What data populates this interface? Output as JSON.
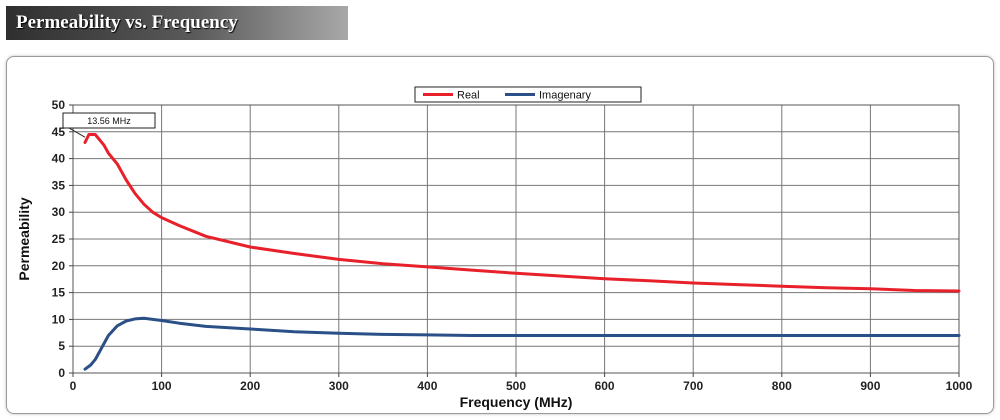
{
  "header": {
    "title": "Permeability vs. Frequency"
  },
  "chart_data": {
    "type": "line",
    "title": "",
    "xlabel": "Frequency (MHz)",
    "ylabel": "Permeability",
    "xlim": [
      0,
      1000
    ],
    "ylim": [
      0,
      50
    ],
    "x_ticks": [
      "0",
      "100",
      "200",
      "300",
      "400",
      "500",
      "600",
      "700",
      "800",
      "900",
      "1000"
    ],
    "y_ticks": [
      "0",
      "5",
      "10",
      "15",
      "20",
      "25",
      "30",
      "35",
      "40",
      "45",
      "50"
    ],
    "grid": true,
    "legend_position": "top-center",
    "annotation": {
      "text": "13.56 MHz",
      "x": 13.56,
      "y": 44
    },
    "series": [
      {
        "name": "Real",
        "color": "#e8202a",
        "x": [
          13.56,
          18,
          25,
          30,
          35,
          40,
          50,
          60,
          70,
          80,
          90,
          100,
          120,
          150,
          200,
          250,
          300,
          350,
          400,
          450,
          500,
          550,
          600,
          650,
          700,
          750,
          800,
          850,
          900,
          950,
          1000
        ],
        "y": [
          43,
          44.5,
          44.5,
          43.5,
          42.5,
          41,
          39,
          36,
          33.5,
          31.5,
          30,
          29,
          27.5,
          25.5,
          23.5,
          22.3,
          21.2,
          20.4,
          19.8,
          19.2,
          18.6,
          18.1,
          17.6,
          17.2,
          16.8,
          16.5,
          16.2,
          15.9,
          15.7,
          15.4,
          15.3
        ]
      },
      {
        "name": "Imagenary",
        "color": "#2b4f87",
        "x": [
          13.56,
          20,
          25,
          30,
          35,
          40,
          50,
          60,
          70,
          80,
          90,
          100,
          120,
          150,
          200,
          250,
          300,
          350,
          400,
          450,
          500,
          550,
          600,
          650,
          700,
          750,
          800,
          850,
          900,
          950,
          1000
        ],
        "y": [
          0.7,
          1.5,
          2.5,
          4,
          5.5,
          7,
          8.8,
          9.7,
          10.1,
          10.2,
          10,
          9.8,
          9.3,
          8.7,
          8.2,
          7.7,
          7.4,
          7.2,
          7.1,
          7.0,
          7.0,
          7.0,
          7.0,
          7.0,
          7.0,
          7.0,
          7.0,
          7.0,
          7.0,
          7.0,
          7.0
        ]
      }
    ]
  }
}
